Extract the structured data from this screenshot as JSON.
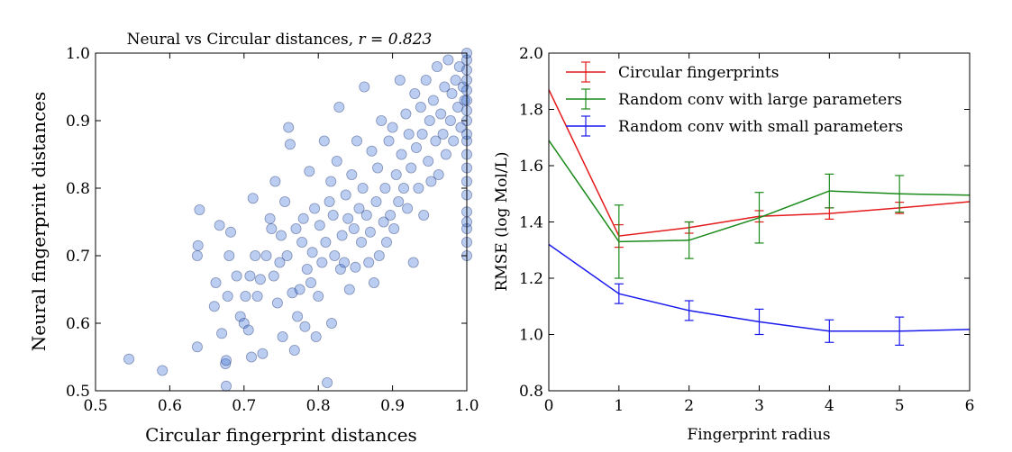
{
  "chart_data": [
    {
      "type": "scatter",
      "title": "Neural vs Circular distances, ",
      "title_stat": "r = 0.823",
      "xlabel": "Circular fingerprint distances",
      "ylabel": "Neural fingerprint distances",
      "xlim": [
        0.5,
        1.0
      ],
      "ylim": [
        0.5,
        1.0
      ],
      "xticks": [
        "0.5",
        "0.6",
        "0.7",
        "0.8",
        "0.9",
        "1.0"
      ],
      "yticks": [
        "0.5",
        "0.6",
        "0.7",
        "0.8",
        "0.9",
        "1.0"
      ],
      "grid": false,
      "point_color": "#3b6fd4",
      "points": [
        [
          0.545,
          0.547
        ],
        [
          0.59,
          0.53
        ],
        [
          0.637,
          0.565
        ],
        [
          0.637,
          0.7
        ],
        [
          0.638,
          0.715
        ],
        [
          0.64,
          0.768
        ],
        [
          0.66,
          0.625
        ],
        [
          0.662,
          0.66
        ],
        [
          0.667,
          0.745
        ],
        [
          0.67,
          0.585
        ],
        [
          0.675,
          0.54
        ],
        [
          0.676,
          0.545
        ],
        [
          0.676,
          0.507
        ],
        [
          0.678,
          0.64
        ],
        [
          0.68,
          0.7
        ],
        [
          0.682,
          0.735
        ],
        [
          0.69,
          0.67
        ],
        [
          0.695,
          0.61
        ],
        [
          0.7,
          0.6
        ],
        [
          0.702,
          0.64
        ],
        [
          0.706,
          0.59
        ],
        [
          0.708,
          0.67
        ],
        [
          0.71,
          0.55
        ],
        [
          0.712,
          0.785
        ],
        [
          0.715,
          0.7
        ],
        [
          0.718,
          0.64
        ],
        [
          0.722,
          0.665
        ],
        [
          0.725,
          0.555
        ],
        [
          0.73,
          0.7
        ],
        [
          0.735,
          0.755
        ],
        [
          0.737,
          0.74
        ],
        [
          0.74,
          0.67
        ],
        [
          0.742,
          0.81
        ],
        [
          0.745,
          0.63
        ],
        [
          0.748,
          0.69
        ],
        [
          0.75,
          0.73
        ],
        [
          0.752,
          0.58
        ],
        [
          0.755,
          0.78
        ],
        [
          0.758,
          0.7
        ],
        [
          0.76,
          0.89
        ],
        [
          0.762,
          0.865
        ],
        [
          0.765,
          0.645
        ],
        [
          0.768,
          0.56
        ],
        [
          0.77,
          0.74
        ],
        [
          0.772,
          0.61
        ],
        [
          0.775,
          0.65
        ],
        [
          0.778,
          0.72
        ],
        [
          0.78,
          0.755
        ],
        [
          0.782,
          0.595
        ],
        [
          0.785,
          0.68
        ],
        [
          0.788,
          0.825
        ],
        [
          0.79,
          0.66
        ],
        [
          0.792,
          0.705
        ],
        [
          0.795,
          0.77
        ],
        [
          0.797,
          0.58
        ],
        [
          0.8,
          0.64
        ],
        [
          0.802,
          0.745
        ],
        [
          0.805,
          0.69
        ],
        [
          0.808,
          0.87
        ],
        [
          0.81,
          0.72
        ],
        [
          0.812,
          0.512
        ],
        [
          0.815,
          0.78
        ],
        [
          0.817,
          0.81
        ],
        [
          0.818,
          0.6
        ],
        [
          0.82,
          0.76
        ],
        [
          0.822,
          0.7
        ],
        [
          0.825,
          0.84
        ],
        [
          0.828,
          0.92
        ],
        [
          0.83,
          0.68
        ],
        [
          0.832,
          0.73
        ],
        [
          0.835,
          0.69
        ],
        [
          0.837,
          0.79
        ],
        [
          0.84,
          0.755
        ],
        [
          0.842,
          0.65
        ],
        [
          0.845,
          0.82
        ],
        [
          0.848,
          0.74
        ],
        [
          0.85,
          0.683
        ],
        [
          0.852,
          0.87
        ],
        [
          0.855,
          0.77
        ],
        [
          0.858,
          0.72
        ],
        [
          0.86,
          0.8
        ],
        [
          0.862,
          0.95
        ],
        [
          0.865,
          0.76
        ],
        [
          0.868,
          0.69
        ],
        [
          0.87,
          0.735
        ],
        [
          0.872,
          0.855
        ],
        [
          0.875,
          0.66
        ],
        [
          0.878,
          0.78
        ],
        [
          0.88,
          0.83
        ],
        [
          0.882,
          0.7
        ],
        [
          0.885,
          0.9
        ],
        [
          0.888,
          0.75
        ],
        [
          0.89,
          0.8
        ],
        [
          0.892,
          0.72
        ],
        [
          0.895,
          0.87
        ],
        [
          0.897,
          0.76
        ],
        [
          0.9,
          0.89
        ],
        [
          0.902,
          0.74
        ],
        [
          0.905,
          0.82
        ],
        [
          0.908,
          0.78
        ],
        [
          0.91,
          0.96
        ],
        [
          0.912,
          0.85
        ],
        [
          0.915,
          0.8
        ],
        [
          0.918,
          0.91
        ],
        [
          0.92,
          0.77
        ],
        [
          0.922,
          0.88
        ],
        [
          0.925,
          0.83
        ],
        [
          0.928,
          0.69
        ],
        [
          0.93,
          0.94
        ],
        [
          0.932,
          0.86
        ],
        [
          0.935,
          0.8
        ],
        [
          0.938,
          0.92
        ],
        [
          0.94,
          0.88
        ],
        [
          0.942,
          0.76
        ],
        [
          0.945,
          0.96
        ],
        [
          0.948,
          0.84
        ],
        [
          0.95,
          0.9
        ],
        [
          0.952,
          0.81
        ],
        [
          0.955,
          0.93
        ],
        [
          0.958,
          0.87
        ],
        [
          0.96,
          0.98
        ],
        [
          0.962,
          0.82
        ],
        [
          0.965,
          0.91
        ],
        [
          0.968,
          0.88
        ],
        [
          0.97,
          0.95
        ],
        [
          0.972,
          0.85
        ],
        [
          0.975,
          0.99
        ],
        [
          0.978,
          0.9
        ],
        [
          0.98,
          0.94
        ],
        [
          0.982,
          0.87
        ],
        [
          0.985,
          0.96
        ],
        [
          0.988,
          0.92
        ],
        [
          0.99,
          0.98
        ],
        [
          0.992,
          0.89
        ],
        [
          0.995,
          0.95
        ],
        [
          0.997,
          0.93
        ],
        [
          1.0,
          0.7
        ],
        [
          1.0,
          0.72
        ],
        [
          1.0,
          0.74
        ],
        [
          1.0,
          0.75
        ],
        [
          1.0,
          0.765
        ],
        [
          1.0,
          0.79
        ],
        [
          1.0,
          0.81
        ],
        [
          1.0,
          0.83
        ],
        [
          1.0,
          0.85
        ],
        [
          1.0,
          0.87
        ],
        [
          1.0,
          0.88
        ],
        [
          1.0,
          0.9
        ],
        [
          1.0,
          0.915
        ],
        [
          1.0,
          0.93
        ],
        [
          1.0,
          0.945
        ],
        [
          1.0,
          0.96
        ],
        [
          1.0,
          0.975
        ],
        [
          1.0,
          0.99
        ],
        [
          1.0,
          1.0
        ]
      ]
    },
    {
      "type": "line",
      "title": "",
      "xlabel": "Fingerprint radius",
      "ylabel": "RMSE (log Mol/L)",
      "xlim": [
        0,
        6
      ],
      "ylim": [
        0.8,
        2.0
      ],
      "xticks": [
        "0",
        "1",
        "2",
        "3",
        "4",
        "5",
        "6"
      ],
      "yticks": [
        "0.8",
        "1.0",
        "1.2",
        "1.4",
        "1.6",
        "1.8",
        "2.0"
      ],
      "grid": false,
      "legend_position": "top-right",
      "x": [
        0,
        1,
        2,
        3,
        4,
        5,
        6
      ],
      "series": [
        {
          "name": "Circular fingerprints",
          "color": "#e41a1c",
          "values": [
            1.87,
            1.35,
            1.38,
            1.42,
            1.43,
            1.45,
            1.472
          ],
          "errors": [
            0,
            0.04,
            0.02,
            0.02,
            0.02,
            0.02,
            0
          ]
        },
        {
          "name": "Random conv with large parameters",
          "color": "#1a8a1a",
          "values": [
            1.69,
            1.33,
            1.335,
            1.415,
            1.51,
            1.5,
            1.495
          ],
          "errors": [
            0,
            0.13,
            0.065,
            0.09,
            0.06,
            0.065,
            0
          ]
        },
        {
          "name": "Random conv with small parameters",
          "color": "#1a1aee",
          "values": [
            1.32,
            1.145,
            1.085,
            1.045,
            1.012,
            1.012,
            1.018
          ],
          "errors": [
            0,
            0.035,
            0.035,
            0.045,
            0.04,
            0.05,
            0
          ]
        }
      ]
    }
  ]
}
